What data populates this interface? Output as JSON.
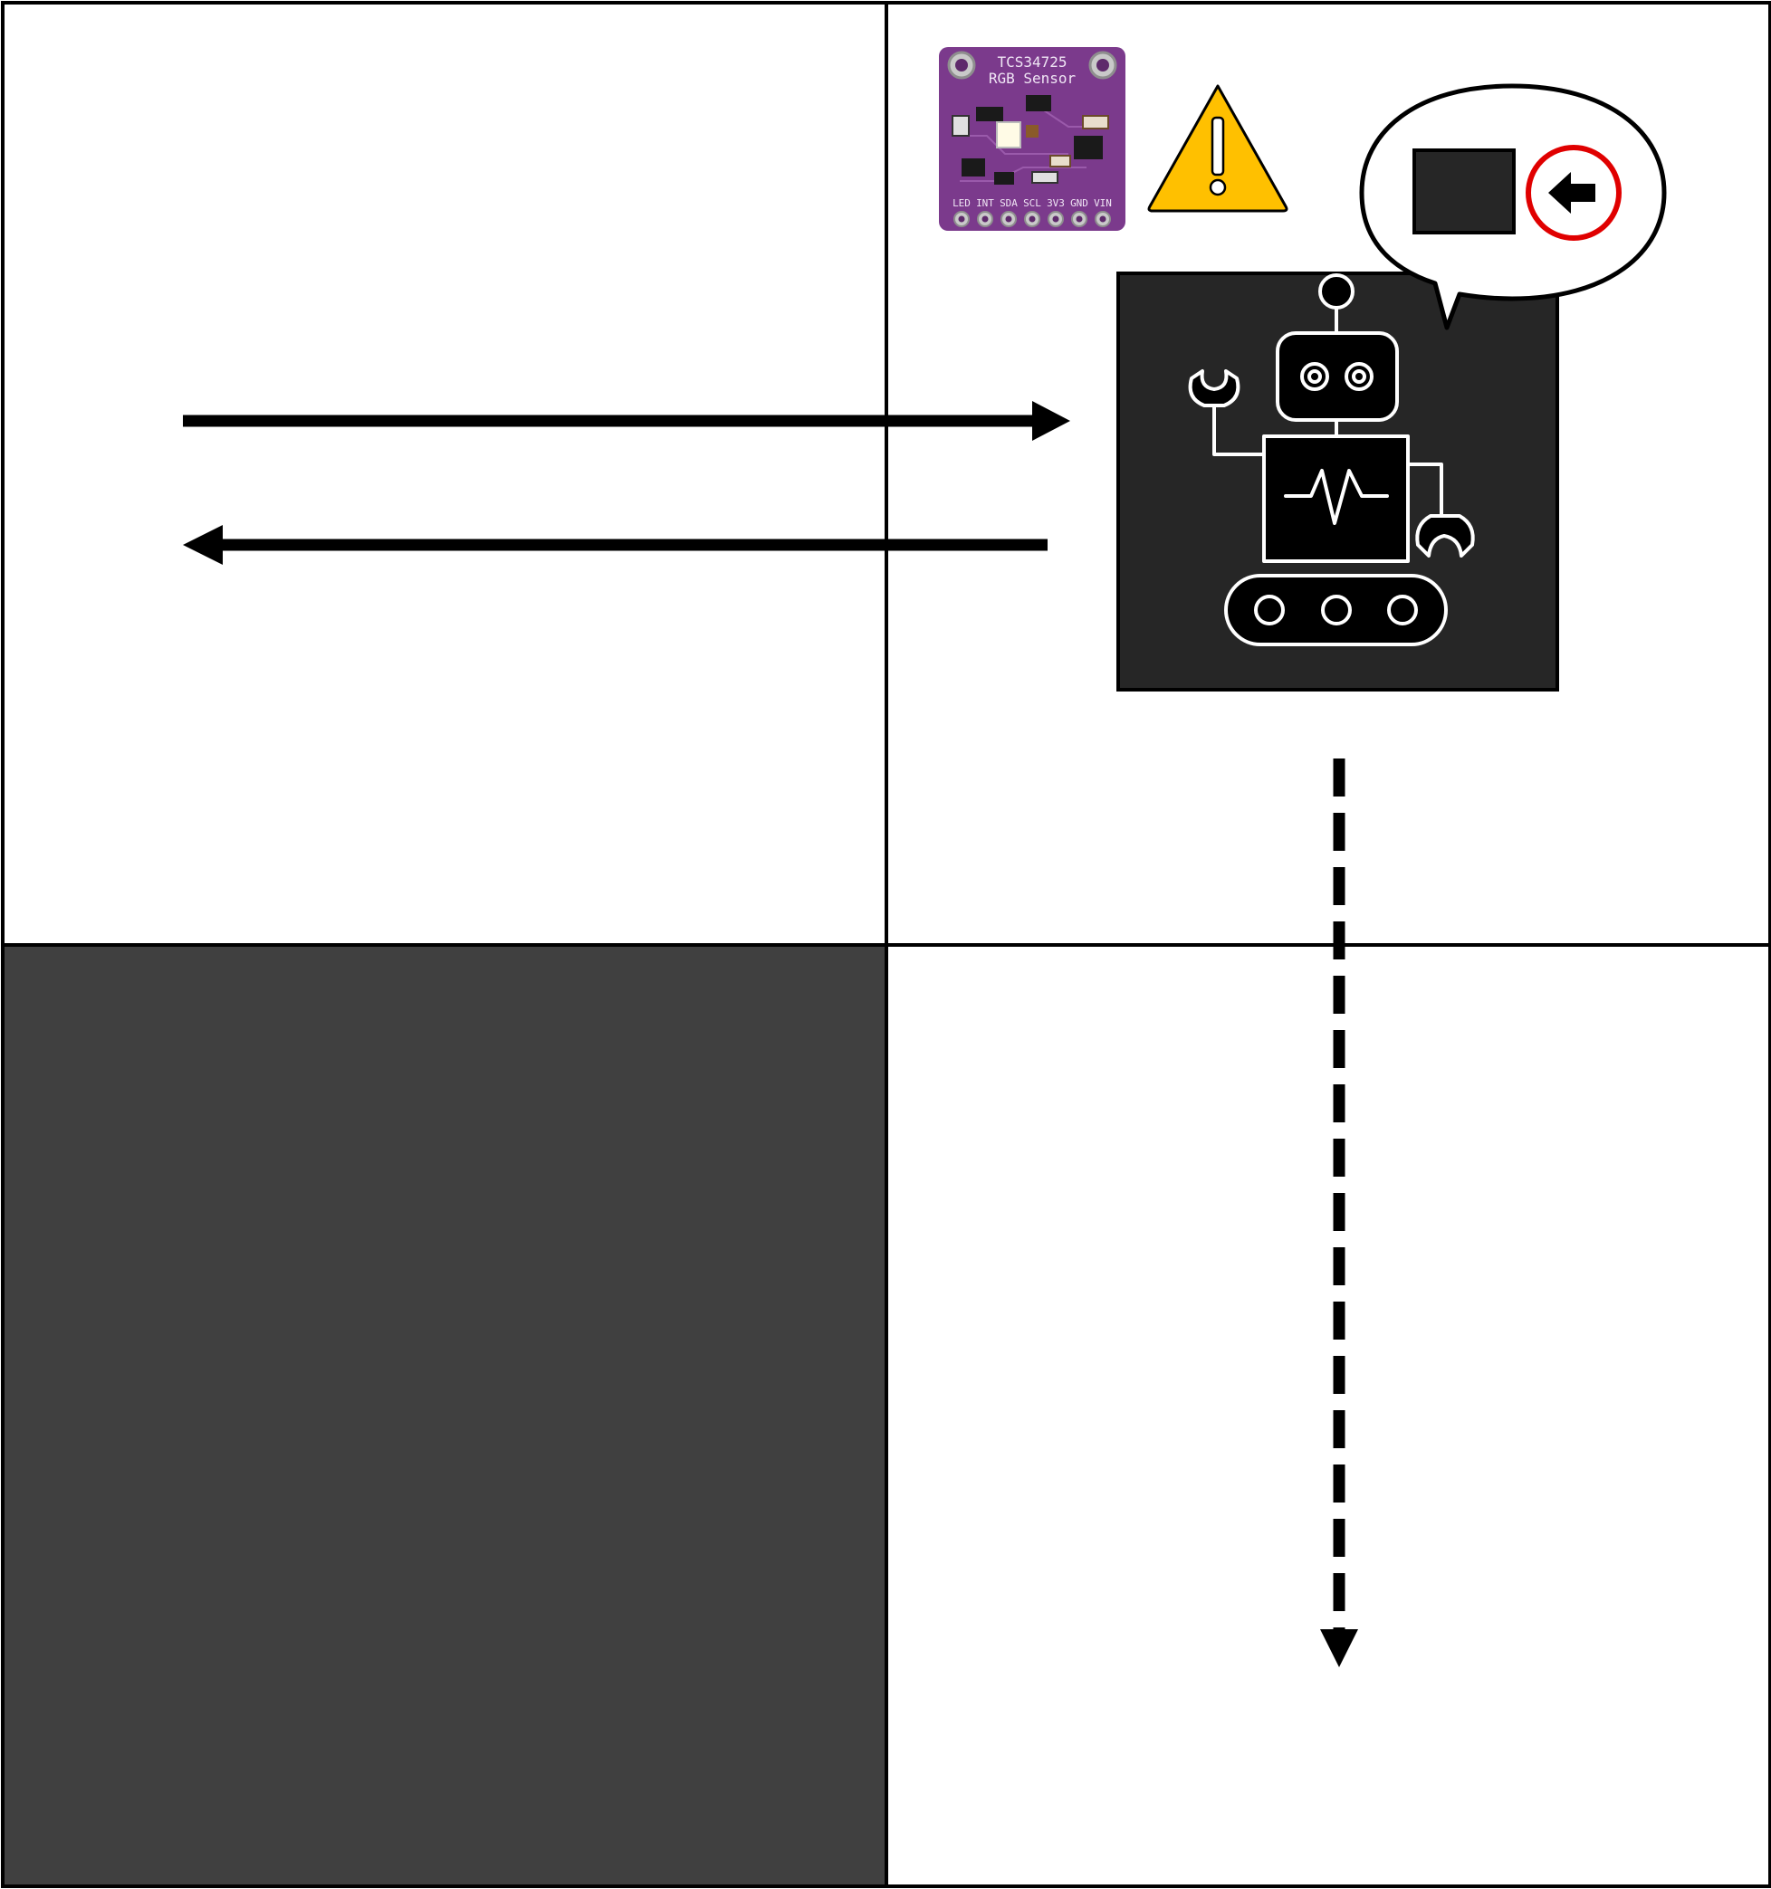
{
  "grid": {
    "cells": [
      {
        "id": "top-left",
        "fill": "#ffffff"
      },
      {
        "id": "top-right",
        "fill": "#ffffff"
      },
      {
        "id": "bottom-left",
        "fill": "#404040"
      },
      {
        "id": "bottom-right",
        "fill": "#ffffff"
      }
    ],
    "border_color": "#000000"
  },
  "sensor": {
    "icon": "rgb-sensor-board",
    "board_color": "#7b3a8c",
    "title_line1": "TCS34725",
    "title_line2": "RGB Sensor",
    "pins": [
      "LED",
      "INT",
      "SDA",
      "SCL",
      "3V3",
      "GND",
      "VIN"
    ]
  },
  "warning": {
    "icon": "warning-triangle-icon",
    "color": "#ffc000"
  },
  "robot": {
    "icon": "robot-icon",
    "tile_color": "#262626"
  },
  "speech_bubble": {
    "color_swatch": "#262626",
    "action_icon": "turn-left-icon",
    "action_ring_color": "#e00000"
  },
  "arrows": {
    "to_robot": "solid-arrow-right",
    "from_robot": "solid-arrow-left",
    "move_down": "dashed-arrow-down"
  }
}
